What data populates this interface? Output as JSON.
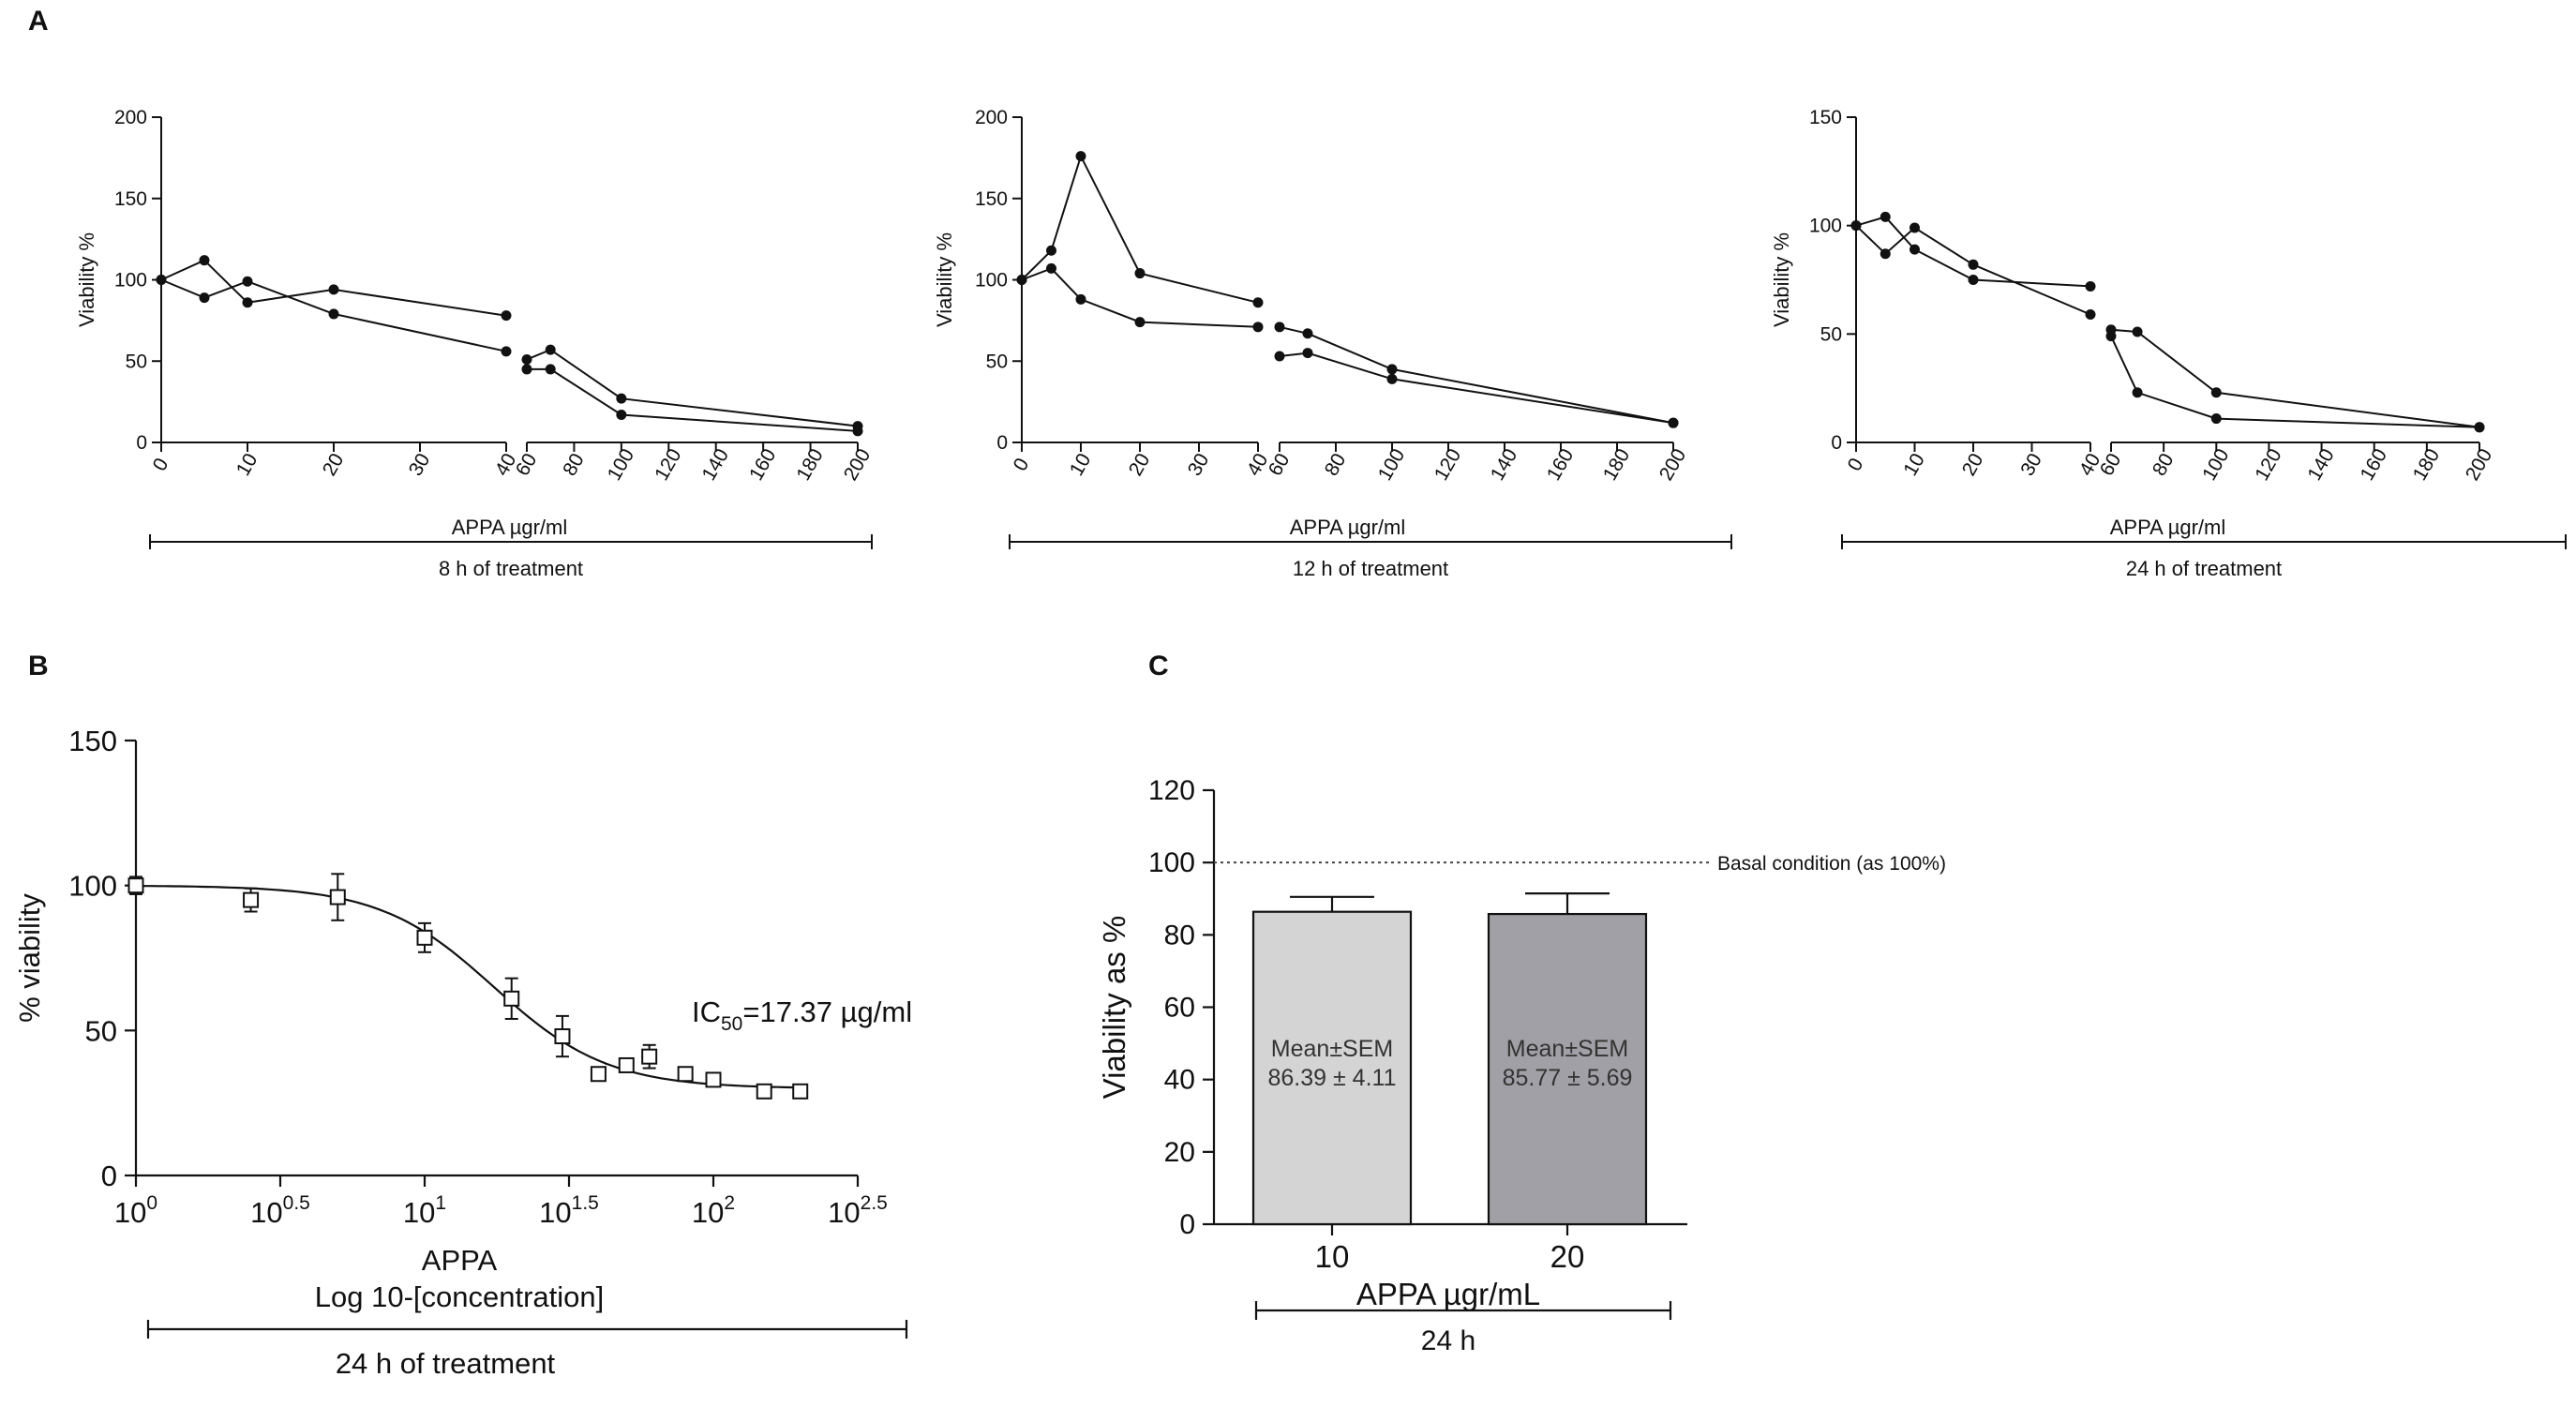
{
  "panels": {
    "a": {
      "letter": "A"
    },
    "b": {
      "letter": "B"
    },
    "c": {
      "letter": "C"
    }
  },
  "chart_data": [
    {
      "id": "a1",
      "type": "line",
      "panel": "A",
      "ylabel": "Viability %",
      "xlabel": "APPA µgr/ml",
      "treatment": "8 h of treatment",
      "x_segment_1": {
        "xlim": [
          0,
          40
        ],
        "ticks": [
          "0",
          "10",
          "20",
          "30",
          "40"
        ]
      },
      "x_segment_2": {
        "xlim": [
          60,
          200
        ],
        "ticks": [
          "60",
          "80",
          "100",
          "120",
          "140",
          "160",
          "180",
          "200"
        ]
      },
      "ylim": [
        0,
        200
      ],
      "yticks": [
        "0",
        "50",
        "100",
        "150",
        "200"
      ],
      "series": [
        {
          "x": [
            0,
            5,
            10,
            20,
            40,
            60,
            70,
            100,
            200
          ],
          "y": [
            100,
            112,
            86,
            94,
            78,
            45,
            45,
            17,
            7
          ]
        },
        {
          "x": [
            0,
            5,
            10,
            20,
            40,
            60,
            70,
            100,
            200
          ],
          "y": [
            100,
            89,
            99,
            79,
            56,
            51,
            57,
            27,
            10
          ]
        }
      ]
    },
    {
      "id": "a2",
      "type": "line",
      "panel": "A",
      "ylabel": "Viability %",
      "xlabel": "APPA µgr/ml",
      "treatment": "12 h of treatment",
      "x_segment_1": {
        "xlim": [
          0,
          40
        ],
        "ticks": [
          "0",
          "10",
          "20",
          "30",
          "40"
        ]
      },
      "x_segment_2": {
        "xlim": [
          60,
          200
        ],
        "ticks": [
          "60",
          "80",
          "100",
          "120",
          "140",
          "160",
          "180",
          "200"
        ]
      },
      "ylim": [
        0,
        200
      ],
      "yticks": [
        "0",
        "50",
        "100",
        "150",
        "200"
      ],
      "series": [
        {
          "x": [
            0,
            5,
            10,
            20,
            40,
            60,
            70,
            100,
            200
          ],
          "y": [
            100,
            118,
            176,
            104,
            86,
            71,
            67,
            45,
            12
          ]
        },
        {
          "x": [
            0,
            5,
            10,
            20,
            40,
            60,
            70,
            100,
            200
          ],
          "y": [
            100,
            107,
            88,
            74,
            71,
            53,
            55,
            39,
            12
          ]
        }
      ]
    },
    {
      "id": "a3",
      "type": "line",
      "panel": "A",
      "ylabel": "Viability %",
      "xlabel": "APPA µgr/ml",
      "treatment": "24 h of treatment",
      "x_segment_1": {
        "xlim": [
          0,
          40
        ],
        "ticks": [
          "0",
          "10",
          "20",
          "30",
          "40"
        ]
      },
      "x_segment_2": {
        "xlim": [
          60,
          200
        ],
        "ticks": [
          "60",
          "80",
          "100",
          "120",
          "140",
          "160",
          "180",
          "200"
        ]
      },
      "ylim": [
        0,
        150
      ],
      "yticks": [
        "0",
        "50",
        "100",
        "150"
      ],
      "series": [
        {
          "x": [
            0,
            5,
            10,
            20,
            40,
            60,
            70,
            100,
            200
          ],
          "y": [
            100,
            87,
            99,
            82,
            59,
            49,
            23,
            11,
            7
          ]
        },
        {
          "x": [
            0,
            5,
            10,
            20,
            40,
            60,
            70,
            100,
            200
          ],
          "y": [
            100,
            104,
            89,
            75,
            72,
            52,
            51,
            23,
            7
          ]
        }
      ]
    },
    {
      "id": "b",
      "type": "scatter",
      "panel": "B",
      "ylabel": "% viability",
      "xlabel": "APPA",
      "xlabel2": "Log 10-[concentration]",
      "treatment": "24 h of treatment",
      "x_scale": "log10",
      "xlim_log": [
        0,
        2.5
      ],
      "xticks": [
        {
          "base": "10",
          "exp": "0"
        },
        {
          "base": "10",
          "exp": "0.5"
        },
        {
          "base": "10",
          "exp": "1"
        },
        {
          "base": "10",
          "exp": "1.5"
        },
        {
          "base": "10",
          "exp": "2"
        },
        {
          "base": "10",
          "exp": "2.5"
        }
      ],
      "ylim": [
        0,
        150
      ],
      "yticks": [
        "0",
        "50",
        "100",
        "150"
      ],
      "annotation": {
        "prefix": "IC",
        "sub": "50",
        "suffix": "=17.37 µg/ml"
      },
      "fit": {
        "top": 100,
        "bottom": 30,
        "ic50": 17.37,
        "hill": 2.2
      },
      "points": [
        {
          "x": 1,
          "y": 100,
          "err": 3
        },
        {
          "x": 2.5,
          "y": 95,
          "err": 4
        },
        {
          "x": 5,
          "y": 96,
          "err": 8
        },
        {
          "x": 10,
          "y": 82,
          "err": 5
        },
        {
          "x": 20,
          "y": 61,
          "err": 7
        },
        {
          "x": 30,
          "y": 48,
          "err": 7
        },
        {
          "x": 40,
          "y": 35,
          "err": 0
        },
        {
          "x": 50,
          "y": 38,
          "err": 0
        },
        {
          "x": 60,
          "y": 41,
          "err": 4
        },
        {
          "x": 80,
          "y": 35,
          "err": 0
        },
        {
          "x": 100,
          "y": 33,
          "err": 0
        },
        {
          "x": 150,
          "y": 29,
          "err": 0
        },
        {
          "x": 200,
          "y": 29,
          "err": 0
        }
      ]
    },
    {
      "id": "c",
      "type": "bar",
      "panel": "C",
      "ylabel": "Viability as %",
      "xlabel": "APPA µgr/mL",
      "treatment": "24 h",
      "categories": [
        "10",
        "20"
      ],
      "values": [
        86.39,
        85.77
      ],
      "errors": [
        4.11,
        5.69
      ],
      "bar_colors": [
        "#d4d4d4",
        "#a0a0a6"
      ],
      "bar_text_1": [
        "Mean±SEM",
        "Mean±SEM"
      ],
      "bar_text_2": [
        "86.39 ± 4.11",
        "85.77 ± 5.69"
      ],
      "ylim": [
        0,
        120
      ],
      "yticks": [
        "0",
        "20",
        "40",
        "60",
        "80",
        "100",
        "120"
      ],
      "reference_line": {
        "value": 100,
        "label": "Basal condition (as 100%)"
      }
    }
  ]
}
